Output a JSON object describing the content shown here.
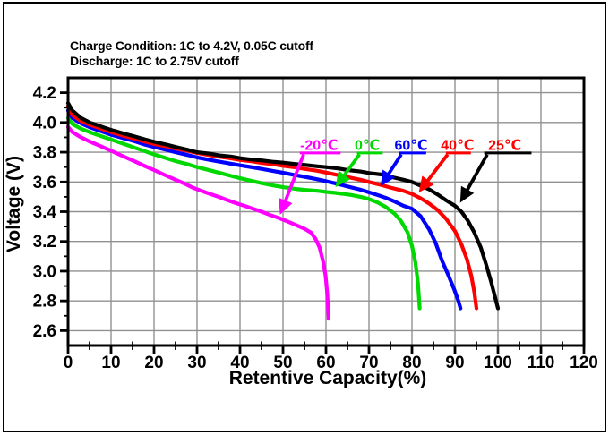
{
  "header": {
    "line1": "Charge Condition: 1C to 4.2V, 0.05C cutoff",
    "line2": "Discharge: 1C to 2.75V cutoff"
  },
  "colors": {
    "background": "#ffffff",
    "frame": "#000000",
    "grid": "#919191"
  },
  "chart_data": {
    "type": "line",
    "title": "",
    "xlabel": "Retentive Capacity(%)",
    "ylabel": "Voltage (V)",
    "xlim": [
      0,
      120
    ],
    "ylim": [
      2.5,
      4.3
    ],
    "grid": true,
    "x_axis": {
      "major_ticks": [
        0,
        10,
        20,
        30,
        40,
        50,
        60,
        70,
        80,
        90,
        100,
        110,
        120
      ],
      "tick_labels": [
        "0",
        "10",
        "20",
        "30",
        "40",
        "50",
        "60",
        "70",
        "80",
        "90",
        "100",
        "110",
        "120"
      ],
      "minor_ticks": [
        5,
        15,
        25,
        35,
        45,
        55,
        65,
        75,
        85,
        95,
        105,
        115
      ],
      "grid_lines": [
        10,
        20,
        30,
        40,
        50,
        60,
        70,
        80,
        90,
        100,
        110
      ]
    },
    "y_axis": {
      "major_ticks": [
        2.6,
        2.8,
        3.0,
        3.2,
        3.4,
        3.6,
        3.8,
        4.0,
        4.2
      ],
      "tick_labels": [
        "2.6",
        "2.8",
        "3.0",
        "3.2",
        "3.4",
        "3.6",
        "3.8",
        "4.0",
        "4.2"
      ],
      "minor_ticks": [
        2.7,
        2.9,
        3.1,
        3.3,
        3.5,
        3.7,
        3.9,
        4.1
      ],
      "grid_lines": [
        2.6,
        2.8,
        3.0,
        3.2,
        3.4,
        3.6,
        3.8,
        4.0,
        4.2
      ]
    },
    "series": [
      {
        "name": "-20℃",
        "id": "curve-minus20c",
        "color": "#ff00ff",
        "points": [
          [
            0,
            3.97
          ],
          [
            1,
            3.935
          ],
          [
            3,
            3.9
          ],
          [
            5,
            3.872
          ],
          [
            8,
            3.835
          ],
          [
            10,
            3.81
          ],
          [
            13,
            3.77
          ],
          [
            15,
            3.745
          ],
          [
            18,
            3.705
          ],
          [
            20,
            3.68
          ],
          [
            23,
            3.64
          ],
          [
            25,
            3.615
          ],
          [
            27,
            3.59
          ],
          [
            29,
            3.562
          ],
          [
            31,
            3.54
          ],
          [
            33,
            3.52
          ],
          [
            35,
            3.5
          ],
          [
            37,
            3.478
          ],
          [
            39,
            3.458
          ],
          [
            41,
            3.44
          ],
          [
            43,
            3.42
          ],
          [
            45,
            3.4
          ],
          [
            47,
            3.378
          ],
          [
            49,
            3.358
          ],
          [
            51,
            3.335
          ],
          [
            53,
            3.31
          ],
          [
            55,
            3.285
          ],
          [
            56.5,
            3.26
          ],
          [
            57.5,
            3.22
          ],
          [
            58.5,
            3.16
          ],
          [
            59.3,
            3.07
          ],
          [
            59.9,
            2.97
          ],
          [
            60.3,
            2.85
          ],
          [
            60.6,
            2.68
          ]
        ]
      },
      {
        "name": "0℃",
        "id": "curve-0c",
        "color": "#00d900",
        "points": [
          [
            0,
            4.03
          ],
          [
            1,
            3.99
          ],
          [
            3,
            3.958
          ],
          [
            5,
            3.935
          ],
          [
            8,
            3.905
          ],
          [
            10,
            3.885
          ],
          [
            13,
            3.855
          ],
          [
            15,
            3.835
          ],
          [
            18,
            3.805
          ],
          [
            20,
            3.785
          ],
          [
            23,
            3.758
          ],
          [
            25,
            3.74
          ],
          [
            28,
            3.718
          ],
          [
            30,
            3.7
          ],
          [
            33,
            3.678
          ],
          [
            35,
            3.663
          ],
          [
            38,
            3.64
          ],
          [
            40,
            3.625
          ],
          [
            43,
            3.605
          ],
          [
            45,
            3.592
          ],
          [
            48,
            3.575
          ],
          [
            50,
            3.565
          ],
          [
            53,
            3.553
          ],
          [
            55,
            3.547
          ],
          [
            58,
            3.54
          ],
          [
            60,
            3.533
          ],
          [
            62,
            3.527
          ],
          [
            64,
            3.52
          ],
          [
            66,
            3.512
          ],
          [
            68,
            3.5
          ],
          [
            70,
            3.485
          ],
          [
            72,
            3.462
          ],
          [
            74,
            3.43
          ],
          [
            76,
            3.385
          ],
          [
            77.5,
            3.335
          ],
          [
            79,
            3.26
          ],
          [
            80,
            3.17
          ],
          [
            80.8,
            3.06
          ],
          [
            81.4,
            2.92
          ],
          [
            81.8,
            2.75
          ]
        ]
      },
      {
        "name": "60℃",
        "id": "curve-60c",
        "color": "#0000ff",
        "points": [
          [
            0,
            4.08
          ],
          [
            1,
            4.03
          ],
          [
            3,
            3.995
          ],
          [
            5,
            3.968
          ],
          [
            8,
            3.938
          ],
          [
            10,
            3.918
          ],
          [
            13,
            3.893
          ],
          [
            15,
            3.878
          ],
          [
            18,
            3.85
          ],
          [
            20,
            3.835
          ],
          [
            23,
            3.815
          ],
          [
            25,
            3.8
          ],
          [
            28,
            3.78
          ],
          [
            30,
            3.765
          ],
          [
            33,
            3.748
          ],
          [
            35,
            3.738
          ],
          [
            38,
            3.722
          ],
          [
            40,
            3.712
          ],
          [
            43,
            3.698
          ],
          [
            45,
            3.688
          ],
          [
            48,
            3.672
          ],
          [
            50,
            3.662
          ],
          [
            53,
            3.645
          ],
          [
            55,
            3.635
          ],
          [
            58,
            3.618
          ],
          [
            60,
            3.605
          ],
          [
            63,
            3.585
          ],
          [
            65,
            3.57
          ],
          [
            68,
            3.548
          ],
          [
            70,
            3.53
          ],
          [
            72,
            3.512
          ],
          [
            74,
            3.492
          ],
          [
            76,
            3.468
          ],
          [
            78,
            3.44
          ],
          [
            80,
            3.42
          ],
          [
            82,
            3.37
          ],
          [
            84,
            3.28
          ],
          [
            85.5,
            3.19
          ],
          [
            87,
            3.07
          ],
          [
            88.5,
            2.97
          ],
          [
            89.8,
            2.88
          ],
          [
            90.8,
            2.8
          ],
          [
            91.3,
            2.75
          ]
        ]
      },
      {
        "name": "40℃",
        "id": "curve-40c",
        "color": "#ff0000",
        "points": [
          [
            0,
            4.11
          ],
          [
            1,
            4.05
          ],
          [
            3,
            4.01
          ],
          [
            5,
            3.985
          ],
          [
            8,
            3.955
          ],
          [
            10,
            3.935
          ],
          [
            13,
            3.91
          ],
          [
            15,
            3.895
          ],
          [
            18,
            3.87
          ],
          [
            20,
            3.855
          ],
          [
            23,
            3.838
          ],
          [
            25,
            3.825
          ],
          [
            28,
            3.808
          ],
          [
            30,
            3.795
          ],
          [
            33,
            3.78
          ],
          [
            35,
            3.77
          ],
          [
            38,
            3.758
          ],
          [
            40,
            3.748
          ],
          [
            43,
            3.738
          ],
          [
            45,
            3.728
          ],
          [
            48,
            3.718
          ],
          [
            50,
            3.708
          ],
          [
            53,
            3.698
          ],
          [
            55,
            3.688
          ],
          [
            58,
            3.675
          ],
          [
            60,
            3.663
          ],
          [
            63,
            3.645
          ],
          [
            65,
            3.633
          ],
          [
            68,
            3.615
          ],
          [
            70,
            3.6
          ],
          [
            73,
            3.578
          ],
          [
            75,
            3.562
          ],
          [
            78,
            3.54
          ],
          [
            80,
            3.52
          ],
          [
            82,
            3.49
          ],
          [
            84,
            3.455
          ],
          [
            86,
            3.41
          ],
          [
            88,
            3.35
          ],
          [
            90,
            3.27
          ],
          [
            91.5,
            3.18
          ],
          [
            92.8,
            3.08
          ],
          [
            93.8,
            2.97
          ],
          [
            94.5,
            2.86
          ],
          [
            95,
            2.75
          ]
        ]
      },
      {
        "name": "25℃",
        "id": "curve-25c",
        "color": "#000000",
        "points": [
          [
            0,
            4.13
          ],
          [
            1,
            4.08
          ],
          [
            3,
            4.03
          ],
          [
            5,
            4.0
          ],
          [
            8,
            3.97
          ],
          [
            10,
            3.95
          ],
          [
            13,
            3.925
          ],
          [
            15,
            3.91
          ],
          [
            18,
            3.885
          ],
          [
            20,
            3.87
          ],
          [
            23,
            3.85
          ],
          [
            25,
            3.835
          ],
          [
            28,
            3.815
          ],
          [
            30,
            3.8
          ],
          [
            33,
            3.79
          ],
          [
            35,
            3.78
          ],
          [
            38,
            3.77
          ],
          [
            40,
            3.76
          ],
          [
            43,
            3.75
          ],
          [
            45,
            3.745
          ],
          [
            48,
            3.735
          ],
          [
            50,
            3.73
          ],
          [
            53,
            3.72
          ],
          [
            55,
            3.715
          ],
          [
            58,
            3.705
          ],
          [
            60,
            3.7
          ],
          [
            63,
            3.69
          ],
          [
            65,
            3.68
          ],
          [
            68,
            3.67
          ],
          [
            70,
            3.66
          ],
          [
            73,
            3.65
          ],
          [
            75,
            3.635
          ],
          [
            78,
            3.615
          ],
          [
            80,
            3.6
          ],
          [
            82,
            3.575
          ],
          [
            84,
            3.55
          ],
          [
            86,
            3.515
          ],
          [
            88,
            3.475
          ],
          [
            90,
            3.44
          ],
          [
            91.5,
            3.4
          ],
          [
            93,
            3.34
          ],
          [
            94.5,
            3.26
          ],
          [
            96,
            3.16
          ],
          [
            97.3,
            3.04
          ],
          [
            98.4,
            2.93
          ],
          [
            99.3,
            2.83
          ],
          [
            100,
            2.75
          ]
        ]
      }
    ],
    "annotations": [
      {
        "label": "-20℃",
        "id": "temp-label-minus20c",
        "text_color": "#ff00ff",
        "arrow_color": "#ff00ff",
        "text_pos": [
          58.4,
          3.815
        ],
        "underline": [
          53.9,
          63.4,
          3.795
        ],
        "arrow_from": [
          54.8,
          3.785
        ],
        "arrow_tip": [
          49.3,
          3.38
        ]
      },
      {
        "label": "0℃",
        "id": "temp-label-0c",
        "text_color": "#00d900",
        "arrow_color": "#00d900",
        "text_pos": [
          69.6,
          3.815
        ],
        "underline": [
          67.2,
          73.2,
          3.795
        ],
        "arrow_from": [
          67.8,
          3.785
        ],
        "arrow_tip": [
          62.2,
          3.565
        ]
      },
      {
        "label": "60℃",
        "id": "temp-label-60c",
        "text_color": "#0000ff",
        "arrow_color": "#0000ff",
        "text_pos": [
          79.8,
          3.815
        ],
        "underline": [
          76.9,
          83.3,
          3.795
        ],
        "arrow_from": [
          77.5,
          3.785
        ],
        "arrow_tip": [
          72.7,
          3.57
        ]
      },
      {
        "label": "40℃",
        "id": "temp-label-40c",
        "text_color": "#ff0000",
        "arrow_color": "#ff0000",
        "text_pos": [
          90.6,
          3.815
        ],
        "underline": [
          87.9,
          93.7,
          3.795
        ],
        "arrow_from": [
          88.3,
          3.785
        ],
        "arrow_tip": [
          81.6,
          3.53
        ]
      },
      {
        "label": "25℃",
        "id": "temp-label-25c",
        "text_color": "#ff0000",
        "arrow_color": "#000000",
        "text_pos": [
          101.6,
          3.815
        ],
        "underline": [
          96.8,
          107.8,
          3.795
        ],
        "arrow_from": [
          97.5,
          3.785
        ],
        "arrow_tip": [
          91.2,
          3.46
        ]
      }
    ]
  }
}
